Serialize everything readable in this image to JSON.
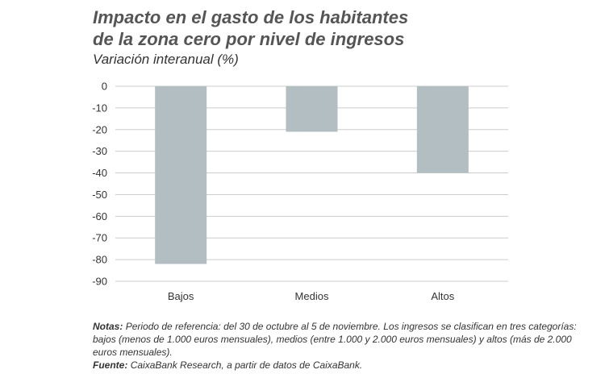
{
  "title_line1": "Impacto en el gasto de los habitantes",
  "title_line2": "de la zona cero por nivel de ingresos",
  "subtitle": "Variación interanual (%)",
  "notes": {
    "label": "Notas:",
    "text": "Periodo de referencia: del 30 de octubre al 5 de noviembre. Los ingresos se clasifican en tres categorías: bajos (menos de 1.000 euros mensuales), medios (entre 1.000 y 2.000 euros mensuales) y altos (más de 2.000 euros mensuales).",
    "source_label": "Fuente:",
    "source_text": "CaixaBank Research, a partir de datos de CaixaBank."
  },
  "chart_data": {
    "type": "bar",
    "title": "Impacto en el gasto de los habitantes de la zona cero por nivel de ingresos",
    "subtitle": "Variación interanual (%)",
    "categories": [
      "Bajos",
      "Medios",
      "Altos"
    ],
    "values": [
      -82,
      -21,
      -40
    ],
    "ylim": [
      -90,
      0
    ],
    "yticks": [
      0,
      -10,
      -20,
      -30,
      -40,
      -50,
      -60,
      -70,
      -80,
      -90
    ],
    "xlabel": "",
    "ylabel": "",
    "grid": true,
    "bar_color": "#b3bec2",
    "grid_color": "#cccccc"
  }
}
